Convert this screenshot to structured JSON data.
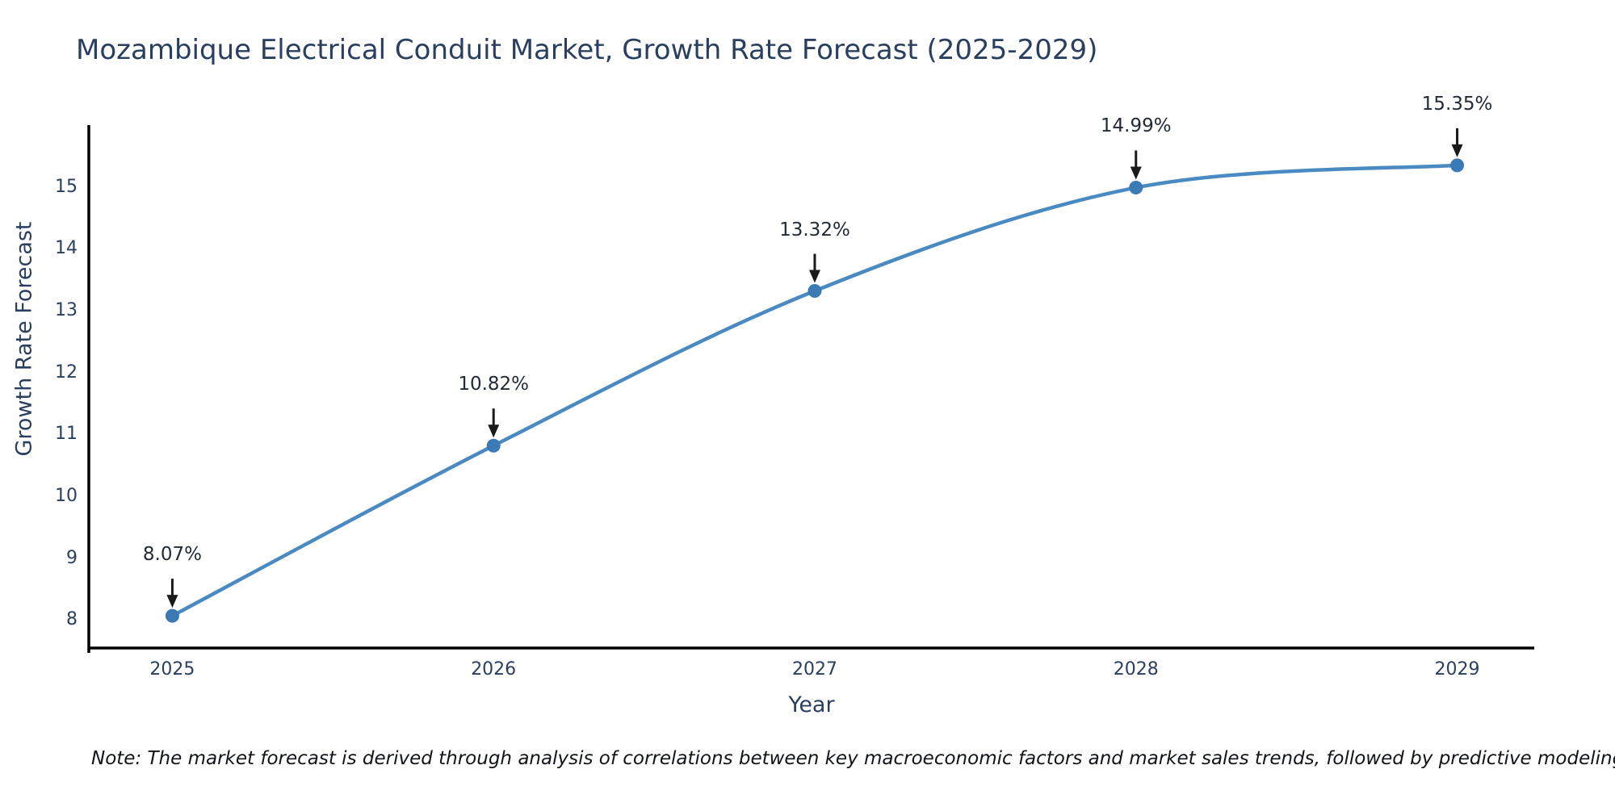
{
  "note": {
    "text": "Note: The market forecast is derived through analysis of correlations between key macroeconomic factors and market sales trends, followed by predictive modeling to project future sales"
  },
  "chart_data": {
    "type": "line",
    "title": "Mozambique Electrical Conduit Market, Growth Rate Forecast (2025-2029)",
    "xlabel": "Year",
    "ylabel": "Growth Rate Forecast",
    "x": [
      2025,
      2026,
      2027,
      2028,
      2029
    ],
    "x_tick_labels": [
      "2025",
      "2026",
      "2027",
      "2028",
      "2029"
    ],
    "series": [
      {
        "name": "Growth Rate Forecast",
        "values": [
          8.07,
          10.82,
          13.32,
          14.99,
          15.35
        ]
      }
    ],
    "point_labels": [
      "8.07%",
      "10.82%",
      "13.32%",
      "14.99%",
      "15.35%"
    ],
    "y_ticks": [
      8,
      9,
      10,
      11,
      12,
      13,
      14,
      15
    ],
    "y_tick_labels": [
      "8",
      "9",
      "10",
      "11",
      "12",
      "13",
      "14",
      "15"
    ],
    "xlim": [
      2024.74,
      2029.24
    ],
    "ylim": [
      7.55,
      16.0
    ],
    "grid": false,
    "legend_position": "none",
    "curve": "spline",
    "annotations": "arrow-down-to-point",
    "colors": {
      "line": "#4a8ac2",
      "marker": "#3b7ab5",
      "axis": "#000000",
      "tick_text": "#2a3f5f",
      "annotation_text": "#222a35",
      "arrow": "#1a1a1a",
      "title_text": "#2a3f5f",
      "background": "#ffffff"
    }
  }
}
